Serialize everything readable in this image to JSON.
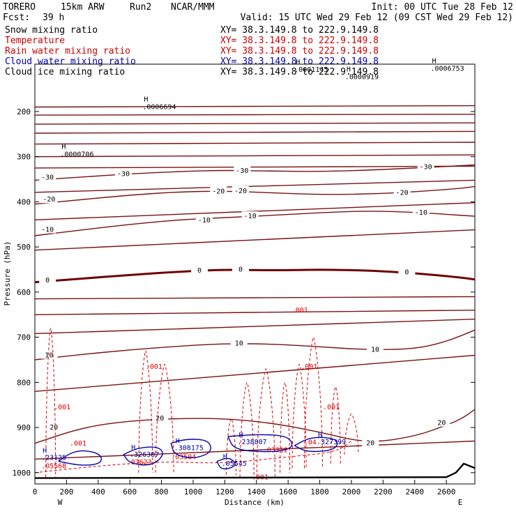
{
  "header": {
    "model": "TORERO",
    "resolution": "15km ARW",
    "run": "Run2",
    "org": "NCAR/MMM",
    "init": "Init: 00 UTC Tue 28 Feb 12",
    "fcst_label": "Fcst:",
    "fcst_value": "39 h",
    "valid": "Valid: 15 UTC Wed 29 Feb 12 (09 CST Wed 29 Feb 12)"
  },
  "fields": [
    {
      "name": "Snow mixing ratio",
      "color": "#000000",
      "xy": "XY=  38.3.149.8 to 222.9.149.8"
    },
    {
      "name": "Temperature",
      "color": "#cc0000",
      "xy": "XY=  38.3.149.8 to 222.9.149.8"
    },
    {
      "name": "Rain water mixing ratio",
      "color": "#cc0000",
      "xy": "XY=  38.3.149.8 to 222.9.149.8"
    },
    {
      "name": "Cloud water mixing ratio",
      "color": "#0000aa",
      "xy": "XY=  38.3.149.8 to 222.9.149.8"
    },
    {
      "name": "Cloud ice mixing ratio",
      "color": "#000000",
      "xy": "XY=  38.3.149.8 to 222.9.149.8"
    }
  ],
  "chart_data": {
    "type": "line",
    "xlabel": "Distance (km)",
    "ylabel": "Pressure (hPa)",
    "xlim": [
      0,
      2780
    ],
    "ylim": [
      1025,
      95
    ],
    "xticks": [
      0,
      200,
      400,
      600,
      800,
      1000,
      1200,
      1400,
      1600,
      1800,
      2000,
      2200,
      2400,
      2600
    ],
    "yticks": [
      200,
      300,
      400,
      500,
      600,
      700,
      800,
      900,
      1000
    ],
    "endpoints": {
      "left": "W",
      "right": "E"
    },
    "colors": {
      "temperature": "#7a1010",
      "zero_isotherm": "#6e0000",
      "rain": "#dd0000",
      "cloud_water": "#0000aa",
      "snow": "#000000",
      "terrain": "#000000"
    },
    "temperature_contours": [
      {
        "label": "-30",
        "points": [
          [
            0,
            352
          ],
          [
            300,
            345
          ],
          [
            600,
            338
          ],
          [
            900,
            333
          ],
          [
            1200,
            330
          ],
          [
            1500,
            332
          ],
          [
            1800,
            333
          ],
          [
            2100,
            330
          ],
          [
            2400,
            325
          ],
          [
            2700,
            320
          ],
          [
            2780,
            318
          ]
        ],
        "labels_at": [
          [
            80,
            346
          ],
          [
            560,
            338
          ],
          [
            1310,
            331
          ],
          [
            2470,
            323
          ]
        ]
      },
      {
        "label": "-20",
        "points": [
          [
            0,
            405
          ],
          [
            300,
            395
          ],
          [
            600,
            385
          ],
          [
            900,
            378
          ],
          [
            1200,
            376
          ],
          [
            1500,
            380
          ],
          [
            1800,
            384
          ],
          [
            2100,
            383
          ],
          [
            2400,
            378
          ],
          [
            2700,
            370
          ],
          [
            2780,
            366
          ]
        ],
        "labels_at": [
          [
            90,
            395
          ],
          [
            1160,
            377
          ],
          [
            1300,
            376
          ],
          [
            2320,
            380
          ]
        ]
      },
      {
        "label": "-10",
        "points": [
          [
            0,
            475
          ],
          [
            300,
            462
          ],
          [
            600,
            450
          ],
          [
            900,
            440
          ],
          [
            1200,
            435
          ],
          [
            1500,
            430
          ],
          [
            1800,
            424
          ],
          [
            2100,
            420
          ],
          [
            2400,
            423
          ],
          [
            2700,
            430
          ],
          [
            2780,
            432
          ]
        ],
        "labels_at": [
          [
            80,
            462
          ],
          [
            1070,
            441
          ],
          [
            1360,
            432
          ],
          [
            2440,
            424
          ]
        ]
      },
      {
        "label": "0",
        "points": [
          [
            0,
            578
          ],
          [
            300,
            570
          ],
          [
            600,
            562
          ],
          [
            900,
            555
          ],
          [
            1200,
            550
          ],
          [
            1500,
            552
          ],
          [
            1800,
            550
          ],
          [
            2100,
            552
          ],
          [
            2400,
            558
          ],
          [
            2700,
            568
          ],
          [
            2780,
            572
          ]
        ],
        "labels_at": [
          [
            80,
            574
          ],
          [
            1040,
            552
          ],
          [
            1300,
            550
          ],
          [
            2350,
            556
          ]
        ]
      },
      {
        "label": "10",
        "points": [
          [
            0,
            750
          ],
          [
            300,
            738
          ],
          [
            600,
            728
          ],
          [
            900,
            720
          ],
          [
            1200,
            714
          ],
          [
            1500,
            715
          ],
          [
            1800,
            721
          ],
          [
            2100,
            728
          ],
          [
            2400,
            726
          ],
          [
            2600,
            710
          ],
          [
            2780,
            684
          ]
        ],
        "labels_at": [
          [
            90,
            740
          ],
          [
            1290,
            714
          ],
          [
            2150,
            728
          ]
        ]
      },
      {
        "label": "20",
        "points": [
          [
            0,
            935
          ],
          [
            300,
            900
          ],
          [
            600,
            885
          ],
          [
            900,
            880
          ],
          [
            1200,
            880
          ],
          [
            1500,
            890
          ],
          [
            1800,
            910
          ],
          [
            2100,
            935
          ],
          [
            2400,
            920
          ],
          [
            2600,
            895
          ],
          [
            2700,
            880
          ],
          [
            2780,
            860
          ]
        ],
        "labels_at": [
          [
            120,
            900
          ],
          [
            790,
            880
          ],
          [
            2120,
            935
          ],
          [
            2570,
            890
          ]
        ]
      }
    ],
    "extra_isotherms": [
      [
        [
          0,
          190
        ],
        [
          2780,
          187
        ]
      ],
      [
        [
          0,
          208
        ],
        [
          2780,
          206
        ]
      ],
      [
        [
          0,
          228
        ],
        [
          2780,
          225
        ]
      ],
      [
        [
          0,
          248
        ],
        [
          2780,
          244
        ]
      ],
      [
        [
          0,
          272
        ],
        [
          2780,
          268
        ]
      ],
      [
        [
          0,
          300
        ],
        [
          2780,
          296
        ]
      ],
      [
        [
          0,
          325
        ],
        [
          2780,
          321
        ]
      ],
      [
        [
          0,
          379
        ],
        [
          2780,
          352
        ]
      ],
      [
        [
          0,
          440
        ],
        [
          2780,
          402
        ]
      ],
      [
        [
          0,
          507
        ],
        [
          2780,
          462
        ]
      ],
      [
        [
          0,
          615
        ],
        [
          2780,
          610
        ]
      ],
      [
        [
          0,
          650
        ],
        [
          2780,
          640
        ]
      ],
      [
        [
          0,
          692
        ],
        [
          2780,
          660
        ]
      ],
      [
        [
          0,
          820
        ],
        [
          2780,
          740
        ]
      ],
      [
        [
          0,
          970
        ],
        [
          2780,
          930
        ]
      ]
    ],
    "snow_maxima": [
      {
        "marker": "H",
        "value": ".0006694",
        "x": 680,
        "y": 195
      },
      {
        "marker": "H",
        "value": ".0000706",
        "x": 160,
        "y": 300
      },
      {
        "marker": "H",
        "value": ".0001145",
        "x": 1640,
        "y": 112
      },
      {
        "marker": "H",
        "value": ".0000919",
        "x": 1960,
        "y": 128
      },
      {
        "marker": "H",
        "value": ".0006753",
        "x": 2500,
        "y": 110
      }
    ],
    "rain_labels": [
      {
        "value": ".001",
        "x": 1620,
        "y": 645
      },
      {
        "value": ".001",
        "x": 700,
        "y": 770
      },
      {
        "value": ".001",
        "x": 1680,
        "y": 770
      },
      {
        "value": ".001",
        "x": 120,
        "y": 860
      },
      {
        "value": ".001",
        "x": 1820,
        "y": 860
      },
      {
        "value": ".001",
        "x": 220,
        "y": 940
      },
      {
        "value": ".001",
        "x": 1370,
        "y": 1015
      },
      {
        "value": ".05568",
        "x": 40,
        "y": 990
      },
      {
        "value": ".07623",
        "x": 580,
        "y": 982
      },
      {
        "value": ".03504",
        "x": 860,
        "y": 970
      },
      {
        "value": ".03312",
        "x": 1440,
        "y": 955
      },
      {
        "value": ".04",
        "x": 1700,
        "y": 938
      }
    ],
    "cloud_water_maxima": [
      {
        "marker": "H",
        "value": ".23125",
        "x": 40,
        "y": 972
      },
      {
        "marker": "H",
        "value": ".326387",
        "x": 600,
        "y": 965
      },
      {
        "marker": "H",
        "value": ".308175",
        "x": 880,
        "y": 950
      },
      {
        "marker": "H",
        "value": ".238807",
        "x": 1280,
        "y": 937
      },
      {
        "marker": "H",
        "value": ".05545",
        "x": 1180,
        "y": 985
      },
      {
        "marker": "H",
        "value": ".327399",
        "x": 1780,
        "y": 937
      }
    ],
    "rain_curtains": [
      {
        "x": 100,
        "top": 680,
        "bottom": 1010
      },
      {
        "x": 700,
        "top": 730,
        "bottom": 1000
      },
      {
        "x": 820,
        "top": 760,
        "bottom": 1000
      },
      {
        "x": 1240,
        "top": 880,
        "bottom": 1005
      },
      {
        "x": 1340,
        "top": 800,
        "bottom": 1010
      },
      {
        "x": 1460,
        "top": 770,
        "bottom": 1010
      },
      {
        "x": 1580,
        "top": 800,
        "bottom": 1000
      },
      {
        "x": 1670,
        "top": 760,
        "bottom": 990
      },
      {
        "x": 1760,
        "top": 700,
        "bottom": 990
      },
      {
        "x": 1900,
        "top": 810,
        "bottom": 980
      },
      {
        "x": 2000,
        "top": 870,
        "bottom": 960
      }
    ],
    "terrain": {
      "points": [
        [
          0,
          1012
        ],
        [
          2600,
          1010
        ],
        [
          2660,
          1000
        ],
        [
          2710,
          980
        ],
        [
          2780,
          990
        ]
      ]
    }
  }
}
